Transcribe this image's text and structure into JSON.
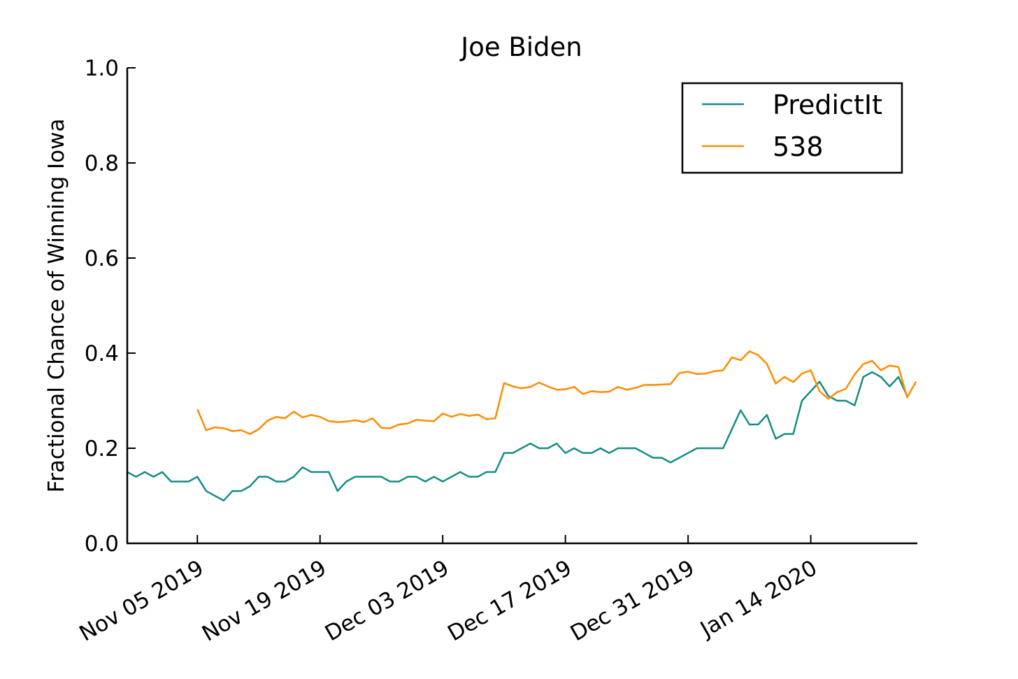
{
  "chart_data": {
    "type": "line",
    "title": "Joe Biden",
    "xlabel": "",
    "ylabel": "Fractional Chance of Winning Iowa",
    "x_range": [
      "2019-10-28",
      "2020-01-26"
    ],
    "ylim": [
      0.0,
      1.0
    ],
    "y_ticks": [
      "0.0",
      "0.2",
      "0.4",
      "0.6",
      "0.8",
      "1.0"
    ],
    "x_ticks": [
      {
        "date": "2019-11-05",
        "label": "Nov 05 2019"
      },
      {
        "date": "2019-11-19",
        "label": "Nov 19 2019"
      },
      {
        "date": "2019-12-03",
        "label": "Dec 03 2019"
      },
      {
        "date": "2019-12-17",
        "label": "Dec 17 2019"
      },
      {
        "date": "2019-12-31",
        "label": "Dec 31 2019"
      },
      {
        "date": "2020-01-14",
        "label": "Jan 14 2020"
      }
    ],
    "grid": false,
    "legend_position": "top-right",
    "series": [
      {
        "name": "PredictIt",
        "color": "#138d85",
        "points": [
          [
            "2019-10-28",
            0.15
          ],
          [
            "2019-10-29",
            0.14
          ],
          [
            "2019-10-30",
            0.15
          ],
          [
            "2019-10-31",
            0.14
          ],
          [
            "2019-11-01",
            0.15
          ],
          [
            "2019-11-02",
            0.13
          ],
          [
            "2019-11-03",
            0.13
          ],
          [
            "2019-11-04",
            0.13
          ],
          [
            "2019-11-05",
            0.14
          ],
          [
            "2019-11-06",
            0.11
          ],
          [
            "2019-11-07",
            0.1
          ],
          [
            "2019-11-08",
            0.09
          ],
          [
            "2019-11-09",
            0.11
          ],
          [
            "2019-11-10",
            0.11
          ],
          [
            "2019-11-11",
            0.12
          ],
          [
            "2019-11-12",
            0.14
          ],
          [
            "2019-11-13",
            0.14
          ],
          [
            "2019-11-14",
            0.13
          ],
          [
            "2019-11-15",
            0.13
          ],
          [
            "2019-11-16",
            0.14
          ],
          [
            "2019-11-17",
            0.16
          ],
          [
            "2019-11-18",
            0.15
          ],
          [
            "2019-11-19",
            0.15
          ],
          [
            "2019-11-20",
            0.15
          ],
          [
            "2019-11-21",
            0.11
          ],
          [
            "2019-11-22",
            0.13
          ],
          [
            "2019-11-23",
            0.14
          ],
          [
            "2019-11-24",
            0.14
          ],
          [
            "2019-11-25",
            0.14
          ],
          [
            "2019-11-26",
            0.14
          ],
          [
            "2019-11-27",
            0.13
          ],
          [
            "2019-11-28",
            0.13
          ],
          [
            "2019-11-29",
            0.14
          ],
          [
            "2019-11-30",
            0.14
          ],
          [
            "2019-12-01",
            0.13
          ],
          [
            "2019-12-02",
            0.14
          ],
          [
            "2019-12-03",
            0.13
          ],
          [
            "2019-12-04",
            0.14
          ],
          [
            "2019-12-05",
            0.15
          ],
          [
            "2019-12-06",
            0.14
          ],
          [
            "2019-12-07",
            0.14
          ],
          [
            "2019-12-08",
            0.15
          ],
          [
            "2019-12-09",
            0.15
          ],
          [
            "2019-12-10",
            0.19
          ],
          [
            "2019-12-11",
            0.19
          ],
          [
            "2019-12-12",
            0.2
          ],
          [
            "2019-12-13",
            0.21
          ],
          [
            "2019-12-14",
            0.2
          ],
          [
            "2019-12-15",
            0.2
          ],
          [
            "2019-12-16",
            0.21
          ],
          [
            "2019-12-17",
            0.19
          ],
          [
            "2019-12-18",
            0.2
          ],
          [
            "2019-12-19",
            0.19
          ],
          [
            "2019-12-20",
            0.19
          ],
          [
            "2019-12-21",
            0.2
          ],
          [
            "2019-12-22",
            0.19
          ],
          [
            "2019-12-23",
            0.2
          ],
          [
            "2019-12-24",
            0.2
          ],
          [
            "2019-12-25",
            0.2
          ],
          [
            "2019-12-26",
            0.19
          ],
          [
            "2019-12-27",
            0.18
          ],
          [
            "2019-12-28",
            0.18
          ],
          [
            "2019-12-29",
            0.17
          ],
          [
            "2019-12-30",
            0.18
          ],
          [
            "2019-12-31",
            0.19
          ],
          [
            "2020-01-01",
            0.2
          ],
          [
            "2020-01-02",
            0.2
          ],
          [
            "2020-01-03",
            0.2
          ],
          [
            "2020-01-04",
            0.2
          ],
          [
            "2020-01-05",
            0.24
          ],
          [
            "2020-01-06",
            0.28
          ],
          [
            "2020-01-07",
            0.25
          ],
          [
            "2020-01-08",
            0.25
          ],
          [
            "2020-01-09",
            0.27
          ],
          [
            "2020-01-10",
            0.22
          ],
          [
            "2020-01-11",
            0.23
          ],
          [
            "2020-01-12",
            0.23
          ],
          [
            "2020-01-13",
            0.3
          ],
          [
            "2020-01-14",
            0.32
          ],
          [
            "2020-01-15",
            0.34
          ],
          [
            "2020-01-16",
            0.31
          ],
          [
            "2020-01-17",
            0.3
          ],
          [
            "2020-01-18",
            0.3
          ],
          [
            "2020-01-19",
            0.29
          ],
          [
            "2020-01-20",
            0.35
          ],
          [
            "2020-01-21",
            0.36
          ],
          [
            "2020-01-22",
            0.35
          ],
          [
            "2020-01-23",
            0.33
          ],
          [
            "2020-01-24",
            0.35
          ],
          [
            "2020-01-25",
            0.31
          ]
        ]
      },
      {
        "name": "538",
        "color": "#ff8c00",
        "points": [
          [
            "2019-11-05",
            0.282
          ],
          [
            "2019-11-06",
            0.238
          ],
          [
            "2019-11-07",
            0.244
          ],
          [
            "2019-11-08",
            0.242
          ],
          [
            "2019-11-09",
            0.236
          ],
          [
            "2019-11-10",
            0.238
          ],
          [
            "2019-11-11",
            0.23
          ],
          [
            "2019-11-12",
            0.24
          ],
          [
            "2019-11-13",
            0.258
          ],
          [
            "2019-11-14",
            0.266
          ],
          [
            "2019-11-15",
            0.263
          ],
          [
            "2019-11-16",
            0.277
          ],
          [
            "2019-11-17",
            0.265
          ],
          [
            "2019-11-18",
            0.27
          ],
          [
            "2019-11-19",
            0.266
          ],
          [
            "2019-11-20",
            0.257
          ],
          [
            "2019-11-21",
            0.255
          ],
          [
            "2019-11-22",
            0.256
          ],
          [
            "2019-11-23",
            0.259
          ],
          [
            "2019-11-24",
            0.255
          ],
          [
            "2019-11-25",
            0.263
          ],
          [
            "2019-11-26",
            0.243
          ],
          [
            "2019-11-27",
            0.242
          ],
          [
            "2019-11-28",
            0.25
          ],
          [
            "2019-11-29",
            0.252
          ],
          [
            "2019-11-30",
            0.26
          ],
          [
            "2019-12-01",
            0.258
          ],
          [
            "2019-12-02",
            0.257
          ],
          [
            "2019-12-03",
            0.273
          ],
          [
            "2019-12-04",
            0.266
          ],
          [
            "2019-12-05",
            0.272
          ],
          [
            "2019-12-06",
            0.268
          ],
          [
            "2019-12-07",
            0.271
          ],
          [
            "2019-12-08",
            0.261
          ],
          [
            "2019-12-09",
            0.263
          ],
          [
            "2019-12-10",
            0.337
          ],
          [
            "2019-12-11",
            0.33
          ],
          [
            "2019-12-12",
            0.326
          ],
          [
            "2019-12-13",
            0.329
          ],
          [
            "2019-12-14",
            0.338
          ],
          [
            "2019-12-15",
            0.33
          ],
          [
            "2019-12-16",
            0.323
          ],
          [
            "2019-12-17",
            0.324
          ],
          [
            "2019-12-18",
            0.329
          ],
          [
            "2019-12-19",
            0.314
          ],
          [
            "2019-12-20",
            0.32
          ],
          [
            "2019-12-21",
            0.318
          ],
          [
            "2019-12-22",
            0.319
          ],
          [
            "2019-12-23",
            0.329
          ],
          [
            "2019-12-24",
            0.323
          ],
          [
            "2019-12-25",
            0.327
          ],
          [
            "2019-12-26",
            0.333
          ],
          [
            "2019-12-27",
            0.333
          ],
          [
            "2019-12-28",
            0.334
          ],
          [
            "2019-12-29",
            0.335
          ],
          [
            "2019-12-30",
            0.358
          ],
          [
            "2019-12-31",
            0.361
          ],
          [
            "2020-01-01",
            0.356
          ],
          [
            "2020-01-02",
            0.357
          ],
          [
            "2020-01-03",
            0.362
          ],
          [
            "2020-01-04",
            0.364
          ],
          [
            "2020-01-05",
            0.391
          ],
          [
            "2020-01-06",
            0.385
          ],
          [
            "2020-01-07",
            0.404
          ],
          [
            "2020-01-08",
            0.396
          ],
          [
            "2020-01-09",
            0.377
          ],
          [
            "2020-01-10",
            0.336
          ],
          [
            "2020-01-11",
            0.35
          ],
          [
            "2020-01-12",
            0.339
          ],
          [
            "2020-01-13",
            0.357
          ],
          [
            "2020-01-14",
            0.364
          ],
          [
            "2020-01-15",
            0.32
          ],
          [
            "2020-01-16",
            0.304
          ],
          [
            "2020-01-17",
            0.318
          ],
          [
            "2020-01-18",
            0.325
          ],
          [
            "2020-01-19",
            0.355
          ],
          [
            "2020-01-20",
            0.377
          ],
          [
            "2020-01-21",
            0.384
          ],
          [
            "2020-01-22",
            0.364
          ],
          [
            "2020-01-23",
            0.374
          ],
          [
            "2020-01-24",
            0.371
          ],
          [
            "2020-01-25",
            0.307
          ],
          [
            "2020-01-26",
            0.34
          ]
        ]
      }
    ]
  }
}
